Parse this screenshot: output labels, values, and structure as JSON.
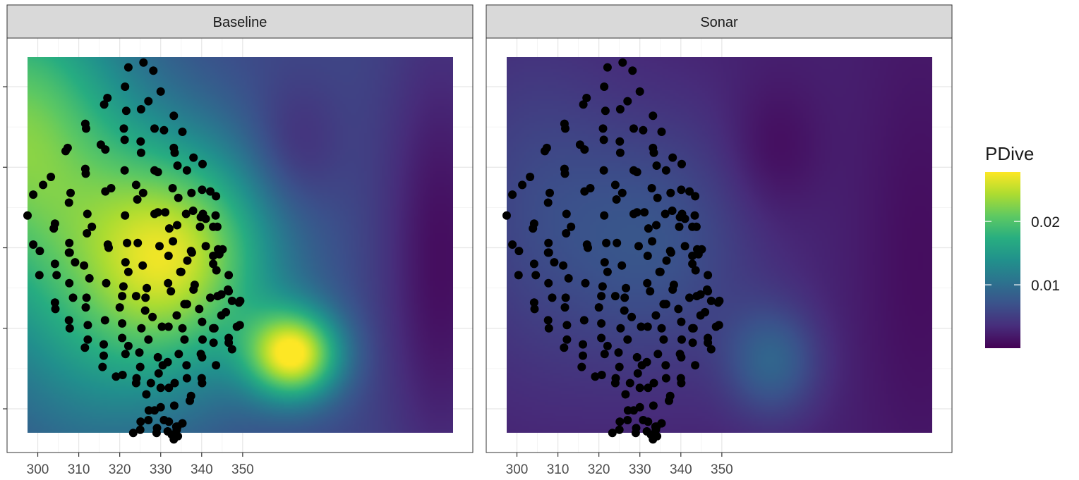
{
  "chart_data": {
    "type": "heatmap",
    "title": "",
    "xlabel": "",
    "ylabel": "",
    "x_range": [
      297.5,
      349.5
    ],
    "y_range": [
      -39.0,
      -15.0
    ],
    "x_ticks": [
      300,
      310,
      320,
      330,
      340,
      350
    ],
    "y_tick_values": [
      -36.5,
      -31.5,
      -26.5,
      -21.5,
      -16.5
    ],
    "y_tick_labels_shown": false,
    "grid": true,
    "legend": {
      "title": "PDive",
      "position": "right",
      "range": [
        0.0,
        0.0278
      ],
      "breaks": [
        0.01,
        0.02
      ],
      "break_labels": [
        "0.01",
        "0.02"
      ],
      "colormap": "viridis"
    },
    "panels": [
      {
        "strip": "Baseline",
        "surface_base": 0.006,
        "surface_modes": [
          {
            "x": 316.0,
            "y": -27.5,
            "peak": 0.017,
            "spread_x": 8.5,
            "spread_y": 5.0
          },
          {
            "x": 330.0,
            "y": -34.0,
            "peak": 0.021,
            "spread_x": 4.0,
            "spread_y": 2.0
          },
          {
            "x": 296.0,
            "y": -20.0,
            "peak": 0.016,
            "spread_x": 10.0,
            "spread_y": 7.0
          },
          {
            "x": 306.0,
            "y": -33.0,
            "peak": 0.006,
            "spread_x": 10.0,
            "spread_y": 6.0
          },
          {
            "x": 330.0,
            "y": -21.0,
            "peak": -0.003,
            "spread_x": 4.0,
            "spread_y": 3.0
          },
          {
            "x": 348.0,
            "y": -28.0,
            "peak": -0.005,
            "spread_x": 5.0,
            "spread_y": 10.0
          }
        ]
      },
      {
        "strip": "Sonar",
        "surface_base": 0.0025,
        "surface_modes": [
          {
            "x": 316.0,
            "y": -27.0,
            "peak": 0.0045,
            "spread_x": 9.0,
            "spread_y": 6.0
          },
          {
            "x": 330.0,
            "y": -34.5,
            "peak": 0.006,
            "spread_x": 4.0,
            "spread_y": 2.5
          },
          {
            "x": 300.0,
            "y": -24.0,
            "peak": 0.003,
            "spread_x": 8.0,
            "spread_y": 8.0
          },
          {
            "x": 330.0,
            "y": -21.0,
            "peak": -0.002,
            "spread_x": 4.0,
            "spread_y": 3.0
          },
          {
            "x": 348.0,
            "y": -28.0,
            "peak": -0.0015,
            "spread_x": 5.0,
            "spread_y": 10.0
          }
        ]
      }
    ],
    "points": [
      [
        325.8,
        -15.0
      ],
      [
        322.1,
        -15.3
      ],
      [
        328.2,
        -15.5
      ],
      [
        317.0,
        -17.2
      ],
      [
        316.2,
        -17.6
      ],
      [
        321.3,
        -16.5
      ],
      [
        327.0,
        -17.4
      ],
      [
        330.0,
        -16.8
      ],
      [
        325.2,
        -17.9
      ],
      [
        333.2,
        -18.3
      ],
      [
        321.6,
        -18.0
      ],
      [
        311.6,
        -18.8
      ],
      [
        311.8,
        -19.1
      ],
      [
        321.0,
        -19.1
      ],
      [
        321.2,
        -19.8
      ],
      [
        325.1,
        -19.9
      ],
      [
        328.5,
        -19.1
      ],
      [
        330.8,
        -19.2
      ],
      [
        335.3,
        -19.3
      ],
      [
        307.3,
        -20.3
      ],
      [
        306.8,
        -20.5
      ],
      [
        315.4,
        -20.1
      ],
      [
        316.5,
        -20.4
      ],
      [
        325.2,
        -20.6
      ],
      [
        333.2,
        -20.3
      ],
      [
        333.4,
        -20.6
      ],
      [
        338.0,
        -20.9
      ],
      [
        340.2,
        -21.3
      ],
      [
        311.6,
        -21.6
      ],
      [
        311.7,
        -21.9
      ],
      [
        303.2,
        -22.1
      ],
      [
        321.2,
        -21.7
      ],
      [
        328.5,
        -21.7
      ],
      [
        329.3,
        -21.8
      ],
      [
        334.1,
        -21.4
      ],
      [
        336.4,
        -21.7
      ],
      [
        301.3,
        -22.6
      ],
      [
        298.9,
        -23.2
      ],
      [
        308.0,
        -23.1
      ],
      [
        316.5,
        -23.0
      ],
      [
        317.9,
        -22.8
      ],
      [
        324.0,
        -22.6
      ],
      [
        325.7,
        -23.1
      ],
      [
        324.3,
        -23.5
      ],
      [
        332.9,
        -22.8
      ],
      [
        334.3,
        -23.4
      ],
      [
        337.5,
        -23.1
      ],
      [
        340.1,
        -22.9
      ],
      [
        342.1,
        -23.0
      ],
      [
        343.5,
        -23.3
      ],
      [
        307.6,
        -23.7
      ],
      [
        297.5,
        -24.5
      ],
      [
        312.1,
        -24.4
      ],
      [
        321.3,
        -24.5
      ],
      [
        328.5,
        -24.4
      ],
      [
        329.3,
        -24.3
      ],
      [
        331.1,
        -24.3
      ],
      [
        336.2,
        -24.4
      ],
      [
        337.9,
        -24.2
      ],
      [
        340.3,
        -24.4
      ],
      [
        339.8,
        -24.6
      ],
      [
        341.0,
        -24.7
      ],
      [
        343.4,
        -24.5
      ],
      [
        304.2,
        -25.0
      ],
      [
        313.2,
        -25.2
      ],
      [
        332.1,
        -25.3
      ],
      [
        334.0,
        -25.1
      ],
      [
        339.6,
        -25.2
      ],
      [
        342.8,
        -25.2
      ],
      [
        343.8,
        -25.2
      ],
      [
        312.0,
        -25.6
      ],
      [
        303.9,
        -25.3
      ],
      [
        298.9,
        -26.3
      ],
      [
        300.5,
        -26.7
      ],
      [
        307.7,
        -26.2
      ],
      [
        317.1,
        -26.3
      ],
      [
        317.3,
        -26.5
      ],
      [
        321.8,
        -26.2
      ],
      [
        324.4,
        -26.2
      ],
      [
        329.7,
        -26.4
      ],
      [
        333.0,
        -26.1
      ],
      [
        337.4,
        -26.7
      ],
      [
        337.6,
        -26.8
      ],
      [
        344.3,
        -26.9
      ],
      [
        344.0,
        -26.6
      ],
      [
        345.1,
        -26.6
      ],
      [
        336.5,
        -27.3
      ],
      [
        341.0,
        -26.4
      ],
      [
        307.6,
        -26.8
      ],
      [
        342.8,
        -27.0
      ],
      [
        307.8,
        -26.8
      ],
      [
        304.2,
        -27.5
      ],
      [
        309.1,
        -27.4
      ],
      [
        311.3,
        -27.6
      ],
      [
        321.4,
        -27.4
      ],
      [
        325.6,
        -27.6
      ],
      [
        331.9,
        -27.0
      ],
      [
        342.8,
        -27.5
      ],
      [
        334.8,
        -28.0
      ],
      [
        335.0,
        -28.0
      ],
      [
        300.4,
        -28.2
      ],
      [
        304.6,
        -28.2
      ],
      [
        312.6,
        -28.4
      ],
      [
        322.1,
        -28.0
      ],
      [
        346.6,
        -28.2
      ],
      [
        343.6,
        -27.9
      ],
      [
        316.7,
        -28.7
      ],
      [
        307.7,
        -28.7
      ],
      [
        320.9,
        -28.9
      ],
      [
        326.6,
        -29.0
      ],
      [
        331.8,
        -28.7
      ],
      [
        332.5,
        -29.2
      ],
      [
        338.3,
        -28.8
      ],
      [
        338.0,
        -29.1
      ],
      [
        346.6,
        -29.2
      ],
      [
        346.4,
        -29.1
      ],
      [
        308.6,
        -29.6
      ],
      [
        311.9,
        -29.6
      ],
      [
        320.6,
        -29.5
      ],
      [
        324.0,
        -29.5
      ],
      [
        326.3,
        -29.6
      ],
      [
        342.1,
        -29.6
      ],
      [
        347.4,
        -29.8
      ],
      [
        344.8,
        -29.4
      ],
      [
        304.2,
        -29.9
      ],
      [
        304.3,
        -30.3
      ],
      [
        311.7,
        -30.2
      ],
      [
        320.0,
        -30.2
      ],
      [
        326.2,
        -30.4
      ],
      [
        335.8,
        -30.0
      ],
      [
        336.4,
        -30.0
      ],
      [
        339.4,
        -30.3
      ],
      [
        343.9,
        -29.5
      ],
      [
        349.1,
        -29.9
      ],
      [
        349.4,
        -29.8
      ],
      [
        344.8,
        -30.7
      ],
      [
        345.9,
        -30.5
      ],
      [
        328.0,
        -30.8
      ],
      [
        333.9,
        -30.7
      ],
      [
        307.6,
        -31.0
      ],
      [
        307.8,
        -31.5
      ],
      [
        312.2,
        -31.3
      ],
      [
        316.4,
        -31.0
      ],
      [
        320.6,
        -31.2
      ],
      [
        330.3,
        -31.4
      ],
      [
        331.9,
        -31.4
      ],
      [
        335.3,
        -31.5
      ],
      [
        340.1,
        -31.1
      ],
      [
        343.1,
        -31.5
      ],
      [
        342.8,
        -31.5
      ],
      [
        348.6,
        -31.4
      ],
      [
        349.3,
        -31.3
      ],
      [
        325.3,
        -31.5
      ],
      [
        316.1,
        -32.5
      ],
      [
        312.2,
        -32.2
      ],
      [
        311.5,
        -32.7
      ],
      [
        320.6,
        -32.1
      ],
      [
        322.1,
        -32.6
      ],
      [
        327.0,
        -32.2
      ],
      [
        335.8,
        -32.2
      ],
      [
        340.2,
        -32.2
      ],
      [
        346.6,
        -32.1
      ],
      [
        346.6,
        -32.4
      ],
      [
        342.9,
        -32.4
      ],
      [
        329.3,
        -33.3
      ],
      [
        334.4,
        -33.1
      ],
      [
        339.8,
        -33.1
      ],
      [
        347.4,
        -32.8
      ],
      [
        340.1,
        -33.3
      ],
      [
        316.1,
        -33.2
      ],
      [
        321.4,
        -33.1
      ],
      [
        324.8,
        -33.0
      ],
      [
        315.8,
        -33.9
      ],
      [
        325.0,
        -33.9
      ],
      [
        330.5,
        -33.8
      ],
      [
        331.7,
        -33.6
      ],
      [
        336.3,
        -33.8
      ],
      [
        343.5,
        -33.8
      ],
      [
        329.5,
        -34.3
      ],
      [
        319.1,
        -34.5
      ],
      [
        320.7,
        -34.4
      ],
      [
        324.1,
        -34.6
      ],
      [
        324.0,
        -34.9
      ],
      [
        336.4,
        -34.6
      ],
      [
        340.0,
        -34.6
      ],
      [
        340.1,
        -34.9
      ],
      [
        327.6,
        -34.9
      ],
      [
        333.4,
        -34.9
      ],
      [
        330.0,
        -35.2
      ],
      [
        332.0,
        -35.2
      ],
      [
        326.5,
        -35.6
      ],
      [
        337.4,
        -35.7
      ],
      [
        337.1,
        -36.0
      ],
      [
        327.1,
        -36.6
      ],
      [
        328.5,
        -36.6
      ],
      [
        330.0,
        -36.4
      ],
      [
        333.3,
        -36.3
      ],
      [
        323.3,
        -38.0
      ],
      [
        325.1,
        -37.3
      ],
      [
        327.0,
        -37.2
      ],
      [
        329.1,
        -37.7
      ],
      [
        330.8,
        -37.2
      ],
      [
        332.0,
        -37.3
      ],
      [
        334.1,
        -37.6
      ],
      [
        333.9,
        -37.8
      ],
      [
        335.3,
        -37.4
      ],
      [
        333.8,
        -37.6
      ],
      [
        325.0,
        -37.8
      ],
      [
        331.7,
        -37.9
      ],
      [
        332.7,
        -38.1
      ],
      [
        329.0,
        -38.0
      ],
      [
        333.2,
        -38.4
      ],
      [
        334.2,
        -38.2
      ]
    ]
  }
}
